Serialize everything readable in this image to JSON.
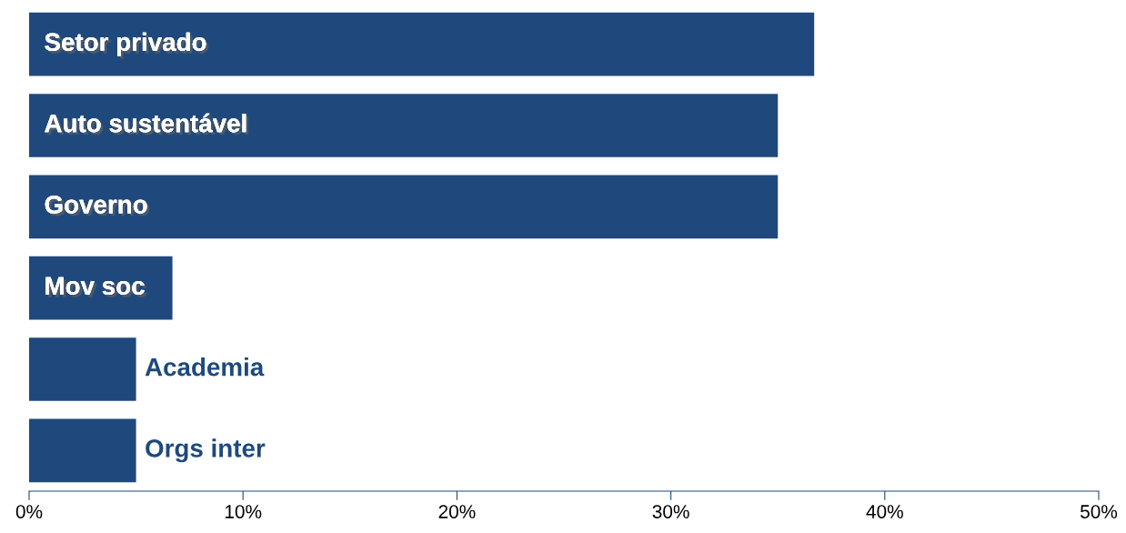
{
  "chart_data": {
    "type": "bar",
    "orientation": "horizontal",
    "categories": [
      "Setor privado",
      "Auto sustentável",
      "Governo",
      "Mov soc",
      "Academia",
      "Orgs inter"
    ],
    "values": [
      36.7,
      35.0,
      35.0,
      6.7,
      5.0,
      5.0
    ],
    "color": "#1f497d",
    "xlim": [
      0,
      50
    ],
    "xticks": [
      {
        "value": 0,
        "label": "0%"
      },
      {
        "value": 10,
        "label": "10%"
      },
      {
        "value": 20,
        "label": "20%"
      },
      {
        "value": 30,
        "label": "30%"
      },
      {
        "value": 40,
        "label": "40%"
      },
      {
        "value": 50,
        "label": "50%"
      }
    ],
    "grid": false,
    "tick_labels": "x"
  }
}
